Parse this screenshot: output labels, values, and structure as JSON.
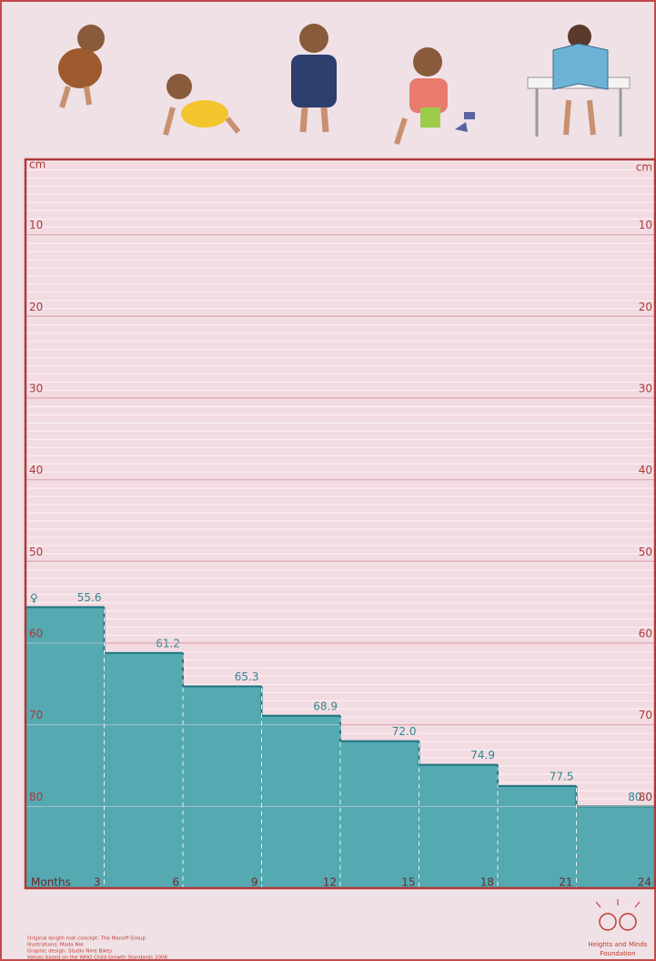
{
  "chart_data": {
    "type": "step",
    "x_label": "Months",
    "y_unit": "cm",
    "symbol": "♀",
    "x": [
      3,
      6,
      9,
      12,
      15,
      18,
      21,
      24
    ],
    "values": [
      55.6,
      61.2,
      65.3,
      68.9,
      72.0,
      74.9,
      77.5,
      80.0
    ],
    "value_labels": [
      "55.6",
      "61.2",
      "65.3",
      "68.9",
      "72.0",
      "74.9",
      "77.5",
      "80.0"
    ],
    "color": "#55a9b1",
    "xlim": [
      0,
      24
    ],
    "xticks": [
      3,
      6,
      9,
      12,
      15,
      18,
      21,
      24
    ],
    "ylim": [
      0,
      90
    ],
    "y_inverted": true,
    "yticks": [
      10,
      20,
      30,
      40,
      50,
      60,
      70,
      80
    ],
    "grid": true
  },
  "footer": {
    "credits": [
      "Original length mat concept: The Manoff Group",
      "Illustrations: Mada Nie",
      "Graphic design: Studio Nine Bikes",
      "Values based on the WHO Child Growth Standards 2006"
    ],
    "logo": [
      "Heights and Minds",
      "Foundation"
    ]
  }
}
